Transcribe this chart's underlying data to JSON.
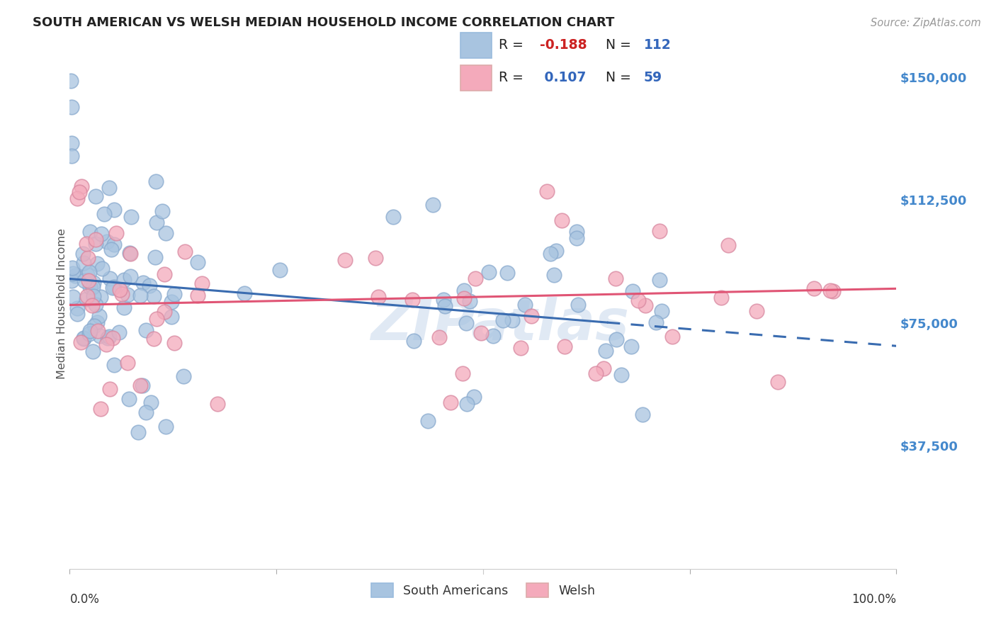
{
  "title": "SOUTH AMERICAN VS WELSH MEDIAN HOUSEHOLD INCOME CORRELATION CHART",
  "source": "Source: ZipAtlas.com",
  "ylabel": "Median Household Income",
  "yticks": [
    0,
    37500,
    75000,
    112500,
    150000
  ],
  "ytick_labels": [
    "",
    "$37,500",
    "$75,000",
    "$112,500",
    "$150,000"
  ],
  "ylim": [
    0,
    162000
  ],
  "xlim": [
    0.0,
    1.0
  ],
  "blue_color": "#A8C4E0",
  "pink_color": "#F4AABB",
  "trend_blue_color": "#3A6CB0",
  "trend_pink_color": "#E05575",
  "legend_r_blue": "-0.188",
  "legend_n_blue": "112",
  "legend_r_pink": "0.107",
  "legend_n_pink": "59",
  "watermark": "ZIPatlas",
  "grid_color": "#DDDDEE",
  "background_color": "#FFFFFF",
  "blue_trend_x0": 0.0,
  "blue_trend_y0": 88500,
  "blue_trend_x1": 1.0,
  "blue_trend_y1": 68000,
  "blue_solid_cutoff": 0.65,
  "pink_trend_x0": 0.0,
  "pink_trend_y0": 80500,
  "pink_trend_x1": 1.0,
  "pink_trend_y1": 85500
}
